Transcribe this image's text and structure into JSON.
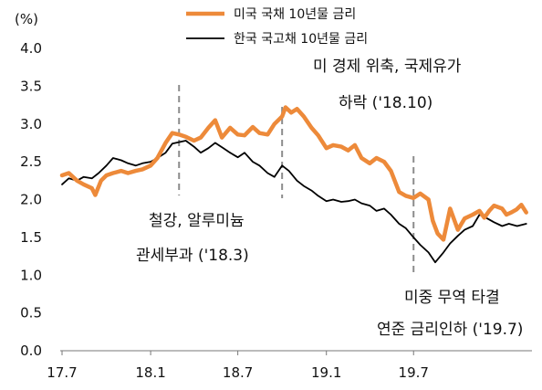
{
  "chart_data": {
    "type": "line",
    "unit_label": "(%)",
    "ylim": [
      0.0,
      4.0
    ],
    "y_ticks": [
      "4.0",
      "3.5",
      "3.0",
      "2.5",
      "2.0",
      "1.5",
      "1.0",
      "0.5",
      "0.0"
    ],
    "x_ticks": [
      "17.7",
      "18.1",
      "18.7",
      "19.1",
      "19.7"
    ],
    "x_range": [
      "2017-07",
      "2020-03"
    ],
    "grid": false,
    "legend_position": "top-center",
    "series": [
      {
        "name": "미국 국채 10년물 금리",
        "color": "#ED8A3A",
        "points": [
          [
            "2017-07-01",
            2.32
          ],
          [
            "2017-07-15",
            2.35
          ],
          [
            "2017-08-01",
            2.25
          ],
          [
            "2017-08-15",
            2.2
          ],
          [
            "2017-09-01",
            2.15
          ],
          [
            "2017-09-08",
            2.06
          ],
          [
            "2017-09-20",
            2.25
          ],
          [
            "2017-10-01",
            2.32
          ],
          [
            "2017-10-15",
            2.35
          ],
          [
            "2017-11-01",
            2.38
          ],
          [
            "2017-11-15",
            2.35
          ],
          [
            "2017-12-01",
            2.38
          ],
          [
            "2017-12-15",
            2.4
          ],
          [
            "2018-01-01",
            2.45
          ],
          [
            "2018-01-15",
            2.55
          ],
          [
            "2018-02-01",
            2.75
          ],
          [
            "2018-02-15",
            2.88
          ],
          [
            "2018-03-01",
            2.86
          ],
          [
            "2018-03-15",
            2.83
          ],
          [
            "2018-04-01",
            2.78
          ],
          [
            "2018-04-15",
            2.82
          ],
          [
            "2018-05-01",
            2.95
          ],
          [
            "2018-05-15",
            3.05
          ],
          [
            "2018-05-29",
            2.82
          ],
          [
            "2018-06-15",
            2.95
          ],
          [
            "2018-07-01",
            2.86
          ],
          [
            "2018-07-15",
            2.85
          ],
          [
            "2018-08-01",
            2.96
          ],
          [
            "2018-08-15",
            2.88
          ],
          [
            "2018-09-01",
            2.86
          ],
          [
            "2018-09-15",
            3.0
          ],
          [
            "2018-10-01",
            3.1
          ],
          [
            "2018-10-08",
            3.22
          ],
          [
            "2018-10-20",
            3.15
          ],
          [
            "2018-11-01",
            3.2
          ],
          [
            "2018-11-15",
            3.1
          ],
          [
            "2018-12-01",
            2.95
          ],
          [
            "2018-12-15",
            2.85
          ],
          [
            "2019-01-01",
            2.68
          ],
          [
            "2019-01-15",
            2.72
          ],
          [
            "2019-02-01",
            2.7
          ],
          [
            "2019-02-15",
            2.65
          ],
          [
            "2019-03-01",
            2.72
          ],
          [
            "2019-03-15",
            2.55
          ],
          [
            "2019-04-01",
            2.48
          ],
          [
            "2019-04-15",
            2.55
          ],
          [
            "2019-05-01",
            2.5
          ],
          [
            "2019-05-15",
            2.38
          ],
          [
            "2019-06-01",
            2.1
          ],
          [
            "2019-06-15",
            2.05
          ],
          [
            "2019-07-01",
            2.02
          ],
          [
            "2019-07-15",
            2.08
          ],
          [
            "2019-08-01",
            2.0
          ],
          [
            "2019-08-10",
            1.72
          ],
          [
            "2019-08-20",
            1.55
          ],
          [
            "2019-09-01",
            1.47
          ],
          [
            "2019-09-15",
            1.88
          ],
          [
            "2019-10-01",
            1.6
          ],
          [
            "2019-10-15",
            1.75
          ],
          [
            "2019-11-01",
            1.8
          ],
          [
            "2019-11-15",
            1.85
          ],
          [
            "2019-11-25",
            1.76
          ],
          [
            "2019-12-05",
            1.85
          ],
          [
            "2019-12-15",
            1.92
          ],
          [
            "2020-01-01",
            1.88
          ],
          [
            "2020-01-10",
            1.8
          ],
          [
            "2020-01-20",
            1.83
          ],
          [
            "2020-01-31",
            1.87
          ],
          [
            "2020-02-10",
            1.93
          ],
          [
            "2020-02-20",
            1.83
          ]
        ]
      },
      {
        "name": "한국 국고채 10년물 금리",
        "color": "#000000",
        "points": [
          [
            "2017-07-01",
            2.2
          ],
          [
            "2017-07-15",
            2.28
          ],
          [
            "2017-08-01",
            2.25
          ],
          [
            "2017-08-15",
            2.3
          ],
          [
            "2017-09-01",
            2.28
          ],
          [
            "2017-09-15",
            2.35
          ],
          [
            "2017-10-01",
            2.45
          ],
          [
            "2017-10-15",
            2.55
          ],
          [
            "2017-11-01",
            2.52
          ],
          [
            "2017-11-15",
            2.48
          ],
          [
            "2017-12-01",
            2.45
          ],
          [
            "2017-12-15",
            2.48
          ],
          [
            "2018-01-01",
            2.5
          ],
          [
            "2018-01-15",
            2.55
          ],
          [
            "2018-02-01",
            2.62
          ],
          [
            "2018-02-15",
            2.74
          ],
          [
            "2018-03-01",
            2.76
          ],
          [
            "2018-03-15",
            2.78
          ],
          [
            "2018-04-01",
            2.7
          ],
          [
            "2018-04-15",
            2.62
          ],
          [
            "2018-05-01",
            2.68
          ],
          [
            "2018-05-15",
            2.75
          ],
          [
            "2018-06-01",
            2.68
          ],
          [
            "2018-06-15",
            2.62
          ],
          [
            "2018-07-01",
            2.56
          ],
          [
            "2018-07-15",
            2.62
          ],
          [
            "2018-08-01",
            2.5
          ],
          [
            "2018-08-15",
            2.45
          ],
          [
            "2018-09-01",
            2.35
          ],
          [
            "2018-09-15",
            2.3
          ],
          [
            "2018-10-01",
            2.45
          ],
          [
            "2018-10-15",
            2.38
          ],
          [
            "2018-11-01",
            2.25
          ],
          [
            "2018-11-15",
            2.18
          ],
          [
            "2018-12-01",
            2.12
          ],
          [
            "2018-12-15",
            2.05
          ],
          [
            "2019-01-01",
            1.98
          ],
          [
            "2019-01-15",
            2.0
          ],
          [
            "2019-02-01",
            1.97
          ],
          [
            "2019-02-15",
            1.98
          ],
          [
            "2019-03-01",
            2.0
          ],
          [
            "2019-03-15",
            1.95
          ],
          [
            "2019-04-01",
            1.92
          ],
          [
            "2019-04-15",
            1.85
          ],
          [
            "2019-05-01",
            1.88
          ],
          [
            "2019-05-15",
            1.8
          ],
          [
            "2019-06-01",
            1.68
          ],
          [
            "2019-06-15",
            1.62
          ],
          [
            "2019-07-01",
            1.5
          ],
          [
            "2019-07-15",
            1.4
          ],
          [
            "2019-08-01",
            1.3
          ],
          [
            "2019-08-15",
            1.17
          ],
          [
            "2019-09-01",
            1.3
          ],
          [
            "2019-09-15",
            1.42
          ],
          [
            "2019-10-01",
            1.52
          ],
          [
            "2019-10-15",
            1.6
          ],
          [
            "2019-11-01",
            1.65
          ],
          [
            "2019-11-15",
            1.8
          ],
          [
            "2019-12-01",
            1.75
          ],
          [
            "2019-12-15",
            1.7
          ],
          [
            "2020-01-01",
            1.65
          ],
          [
            "2020-01-15",
            1.68
          ],
          [
            "2020-02-01",
            1.65
          ],
          [
            "2020-02-20",
            1.68
          ]
        ]
      }
    ],
    "events": [
      {
        "date": "2018-03-01",
        "label_lines": [
          "철강, 알루미늄",
          "관세부과 ('18.3)"
        ],
        "label_position": "below-line"
      },
      {
        "date": "2018-10-01",
        "label_lines": [
          "미 경제 위축, 국제유가",
          "하락 ('18.10)"
        ],
        "label_position": "above-line"
      },
      {
        "date": "2019-07-01",
        "label_lines": [
          "미중 무역 타결",
          "연준 금리인하 ('19.7)"
        ],
        "label_position": "below-right"
      }
    ]
  }
}
